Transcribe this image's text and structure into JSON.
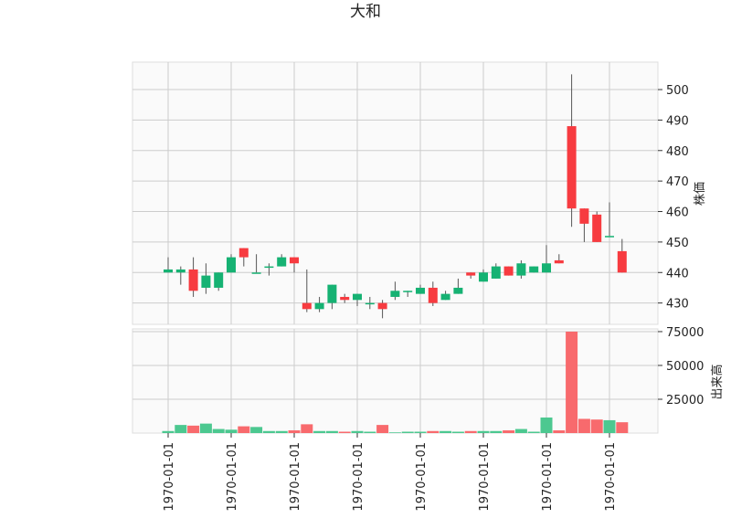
{
  "chart_data": {
    "type": "candlestick",
    "title": "大和",
    "price_panel": {
      "ylabel": "株価",
      "ylim": [
        423,
        509
      ],
      "yticks": [
        430,
        440,
        450,
        460,
        470,
        480,
        490,
        500
      ],
      "up_color": "#16b273",
      "down_color": "#f73b40",
      "candles": [
        {
          "open": 440,
          "high": 445,
          "low": 440,
          "close": 441
        },
        {
          "open": 440,
          "high": 442,
          "low": 436,
          "close": 441
        },
        {
          "open": 441,
          "high": 445,
          "low": 432,
          "close": 434
        },
        {
          "open": 435,
          "high": 443,
          "low": 433,
          "close": 439
        },
        {
          "open": 435,
          "high": 440,
          "low": 434,
          "close": 440
        },
        {
          "open": 440,
          "high": 446,
          "low": 440,
          "close": 445
        },
        {
          "open": 448,
          "high": 448,
          "low": 442,
          "close": 445
        },
        {
          "open": 440,
          "high": 446,
          "low": 440,
          "close": 440
        },
        {
          "open": 442,
          "high": 443,
          "low": 439,
          "close": 442
        },
        {
          "open": 442,
          "high": 446,
          "low": 442,
          "close": 445
        },
        {
          "open": 445,
          "high": 445,
          "low": 440,
          "close": 443
        },
        {
          "open": 430,
          "high": 441,
          "low": 427,
          "close": 428
        },
        {
          "open": 428,
          "high": 432,
          "low": 427,
          "close": 430
        },
        {
          "open": 430,
          "high": 436,
          "low": 428,
          "close": 436
        },
        {
          "open": 432,
          "high": 433,
          "low": 430,
          "close": 431
        },
        {
          "open": 431,
          "high": 433,
          "low": 429,
          "close": 433
        },
        {
          "open": 430,
          "high": 432,
          "low": 428,
          "close": 430
        },
        {
          "open": 430,
          "high": 431,
          "low": 425,
          "close": 428
        },
        {
          "open": 432,
          "high": 437,
          "low": 431,
          "close": 434
        },
        {
          "open": 434,
          "high": 434,
          "low": 432,
          "close": 434
        },
        {
          "open": 433,
          "high": 436,
          "low": 433,
          "close": 435
        },
        {
          "open": 435,
          "high": 437,
          "low": 429,
          "close": 430
        },
        {
          "open": 431,
          "high": 434,
          "low": 431,
          "close": 433
        },
        {
          "open": 433,
          "high": 438,
          "low": 433,
          "close": 435
        },
        {
          "open": 440,
          "high": 440,
          "low": 438,
          "close": 439
        },
        {
          "open": 437,
          "high": 441,
          "low": 437,
          "close": 440
        },
        {
          "open": 438,
          "high": 443,
          "low": 438,
          "close": 442
        },
        {
          "open": 442,
          "high": 442,
          "low": 439,
          "close": 439
        },
        {
          "open": 439,
          "high": 444,
          "low": 438,
          "close": 443
        },
        {
          "open": 440,
          "high": 442,
          "low": 440,
          "close": 442
        },
        {
          "open": 440,
          "high": 449,
          "low": 440,
          "close": 443
        },
        {
          "open": 444,
          "high": 446,
          "low": 443,
          "close": 443
        },
        {
          "open": 488,
          "high": 505,
          "low": 455,
          "close": 461
        },
        {
          "open": 461,
          "high": 461,
          "low": 450,
          "close": 456
        },
        {
          "open": 459,
          "high": 460,
          "low": 450,
          "close": 450
        },
        {
          "open": 452,
          "high": 463,
          "low": 452,
          "close": 452
        },
        {
          "open": 447,
          "high": 451,
          "low": 440,
          "close": 440
        }
      ]
    },
    "volume_panel": {
      "ylabel": "出来高",
      "ylim": [
        0,
        77000
      ],
      "yticks": [
        25000,
        50000,
        75000
      ],
      "values": [
        1500,
        6000,
        5500,
        7000,
        3000,
        2500,
        5000,
        4500,
        1500,
        1500,
        2000,
        6500,
        1500,
        1500,
        1000,
        1500,
        1000,
        6000,
        500,
        1000,
        1000,
        1500,
        1500,
        1000,
        1500,
        1500,
        1500,
        2000,
        3000,
        1000,
        11500,
        2000,
        75000,
        10500,
        10000,
        9500,
        8000
      ]
    },
    "x_tick_labels": [
      "1970-01-01",
      "1970-01-01",
      "1970-01-01",
      "1970-01-01",
      "1970-01-01",
      "1970-01-01",
      "1970-01-01",
      "1970-01-01"
    ],
    "x_tick_indices": [
      0,
      5,
      10,
      15,
      20,
      25,
      30,
      35
    ],
    "grid": true
  }
}
